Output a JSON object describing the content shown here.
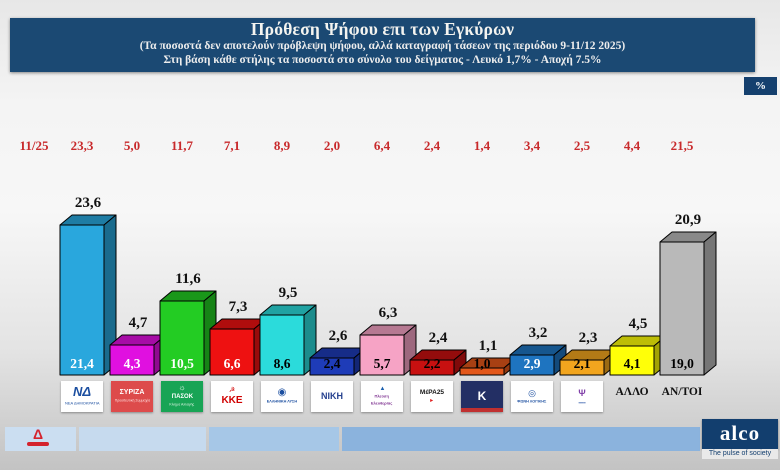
{
  "header": {
    "title": "Πρόθεση Ψήφου επι των Εγκύρων",
    "subtitle1": "(Τα ποσοστά δεν αποτελούν πρόβλεψη ψήφου, αλλά καταγραφή τάσεων της περιόδου 9-11/12 2025)",
    "subtitle2": "Στη βάση κάθε στήλης τα ποσοστά στο σύνολο του δείγματος - Λευκό 1,7% - Αποχή 7.5%",
    "percent_badge": "%"
  },
  "prev_row_label": "11/25",
  "chart_data": {
    "type": "bar",
    "title": "Πρόθεση Ψήφου επι των Εγκύρων",
    "unit": "%",
    "ylim": [
      0,
      25
    ],
    "grid": false,
    "legend": false,
    "categories": [
      "ΝΔ",
      "ΣΥΡΙΖΑ",
      "ΠΑΣΟΚ",
      "ΚΚΕ",
      "ΕΛΛΗΝΙΚΗ ΛΥΣΗ",
      "ΝΙΚΗ",
      "ΠΛΕΥΣΗ ΕΛΕΥΘΕΡΙΑΣ",
      "ΜέΡΑ25",
      "ΚΙΝΗΜΑ ΔΗΜΟΚΡΑΤΙΑΣ",
      "ΦΩΝΗ ΛΟΓΙΚΗΣ",
      "",
      "ΑΛΛΟ",
      "ΑΝ/ΤΟΙ"
    ],
    "series": [
      {
        "name": "επί των εγκύρων 9-11/12 2025 (μαύρες ετικέτες πάνω από τις στήλες)",
        "values": [
          23.6,
          4.7,
          11.6,
          7.3,
          9.5,
          2.6,
          6.3,
          2.4,
          1.1,
          3.2,
          2.3,
          4.5,
          20.9
        ]
      },
      {
        "name": "στο σύνολο του δείγματος (ετικέτες μέσα στις στήλες)",
        "values": [
          21.4,
          4.3,
          10.5,
          6.6,
          8.6,
          2.4,
          5.7,
          2.2,
          1.0,
          2.9,
          2.1,
          4.1,
          19.0
        ]
      },
      {
        "name": "προηγούμενη μέτρηση 11/25 (κόκκινη σειρά)",
        "values": [
          23.3,
          5.0,
          11.7,
          7.1,
          8.9,
          2.0,
          6.4,
          2.4,
          1.4,
          3.4,
          2.5,
          4.4,
          21.5
        ]
      }
    ]
  },
  "render": {
    "bar_colors": [
      "#29A7DD",
      "#E010E0",
      "#23CC23",
      "#EE1111",
      "#2BDBDB",
      "#1E3CB8",
      "#F6A3C5",
      "#C81010",
      "#E2571A",
      "#1E74C0",
      "#F2A51E",
      "#FFFF08",
      "#B9B9B9"
    ],
    "bar_value_label_colors": [
      "#ffffff",
      "#ffffff",
      "#ffffff",
      "#ffffff",
      "#000000",
      "#000000",
      "#000000",
      "#000000",
      "#000000",
      "#ffffff",
      "#000000",
      "#000000",
      "#000000"
    ],
    "top_label_color": "#111111",
    "prev_value_color": "#C8292B",
    "logos": [
      {
        "bg": "#ffffff",
        "lines": [
          {
            "t": "ΝΔ",
            "c": "#1C4FA0",
            "s": 13,
            "b": 1,
            "i": 1
          },
          {
            "t": "ΝΕΑ ΔΗΜΟΚΡΑΤΙΑ",
            "c": "#1C4FA0",
            "s": 4
          }
        ]
      },
      {
        "bg": "#DD4B4B",
        "lines": [
          {
            "t": "ΣΥΡΙΖΑ",
            "c": "#ffffff",
            "s": 7,
            "b": 1
          },
          {
            "t": "Προοδευτική Συμμαχία",
            "c": "#FFE3E3",
            "s": 3.5
          }
        ]
      },
      {
        "bg": "#18A455",
        "lines": [
          {
            "t": "☼",
            "c": "#FFFFFF",
            "s": 8
          },
          {
            "t": "ΠΑΣΟΚ",
            "c": "#ffffff",
            "s": 6,
            "b": 1
          },
          {
            "t": "Κίνημα Αλλαγής",
            "c": "#DFF5E5",
            "s": 3.5
          }
        ]
      },
      {
        "bg": "#ffffff",
        "lines": [
          {
            "t": "☭",
            "c": "#D10000",
            "s": 7
          },
          {
            "t": "ΚΚΕ",
            "c": "#D10000",
            "s": 10,
            "b": 1
          }
        ]
      },
      {
        "bg": "#ffffff",
        "lines": [
          {
            "t": "◉",
            "c": "#1C4FA0",
            "s": 10
          },
          {
            "t": "ΕΛΛΗΝΙΚΗ ΛΥΣΗ",
            "c": "#1C4FA0",
            "s": 3.8,
            "b": 1
          }
        ]
      },
      {
        "bg": "#ffffff",
        "lines": [
          {
            "t": "ΝΙΚΗ",
            "c": "#26418F",
            "s": 9,
            "b": 1
          }
        ]
      },
      {
        "bg": "#ffffff",
        "lines": [
          {
            "t": "▲",
            "c": "#1B5FAE",
            "s": 6
          },
          {
            "t": "Πλεύση",
            "c": "#7B2D8E",
            "s": 4,
            "b": 1
          },
          {
            "t": "Ελευθερίας",
            "c": "#7B2D8E",
            "s": 4,
            "b": 1
          }
        ]
      },
      {
        "bg": "#ffffff",
        "lines": [
          {
            "t": "ΜέΡΑ25",
            "c": "#151515",
            "s": 6.5,
            "b": 1
          },
          {
            "t": "▶",
            "c": "#E02020",
            "s": 4
          }
        ]
      },
      {
        "bg": "#232F64",
        "lines": [
          {
            "t": "Κ",
            "c": "#ffffff",
            "s": 12,
            "b": 1
          }
        ],
        "bar": "#C03030"
      },
      {
        "bg": "#ffffff",
        "lines": [
          {
            "t": "◎",
            "c": "#1C4FA0",
            "s": 9
          },
          {
            "t": "ΦΩΝΗ ΛΟΓΙΚΗΣ",
            "c": "#1C4FA0",
            "s": 3.8,
            "b": 1
          }
        ]
      },
      {
        "bg": "#ffffff",
        "lines": [
          {
            "t": "Ψ",
            "c": "#8040A8",
            "s": 9,
            "b": 1
          },
          {
            "t": "▂▂▂",
            "c": "#4A6FB5",
            "s": 3
          }
        ]
      },
      {
        "text_only": true
      },
      {
        "text_only": true
      }
    ]
  },
  "footer": {
    "segment_colors": [
      "#CBDEF1",
      "#C6DAEE",
      "#A6C7E7",
      "#8BB3DD"
    ],
    "alpha_glyph": "Δ",
    "alco_name": "alco",
    "alco_tagline": "The pulse of society"
  }
}
